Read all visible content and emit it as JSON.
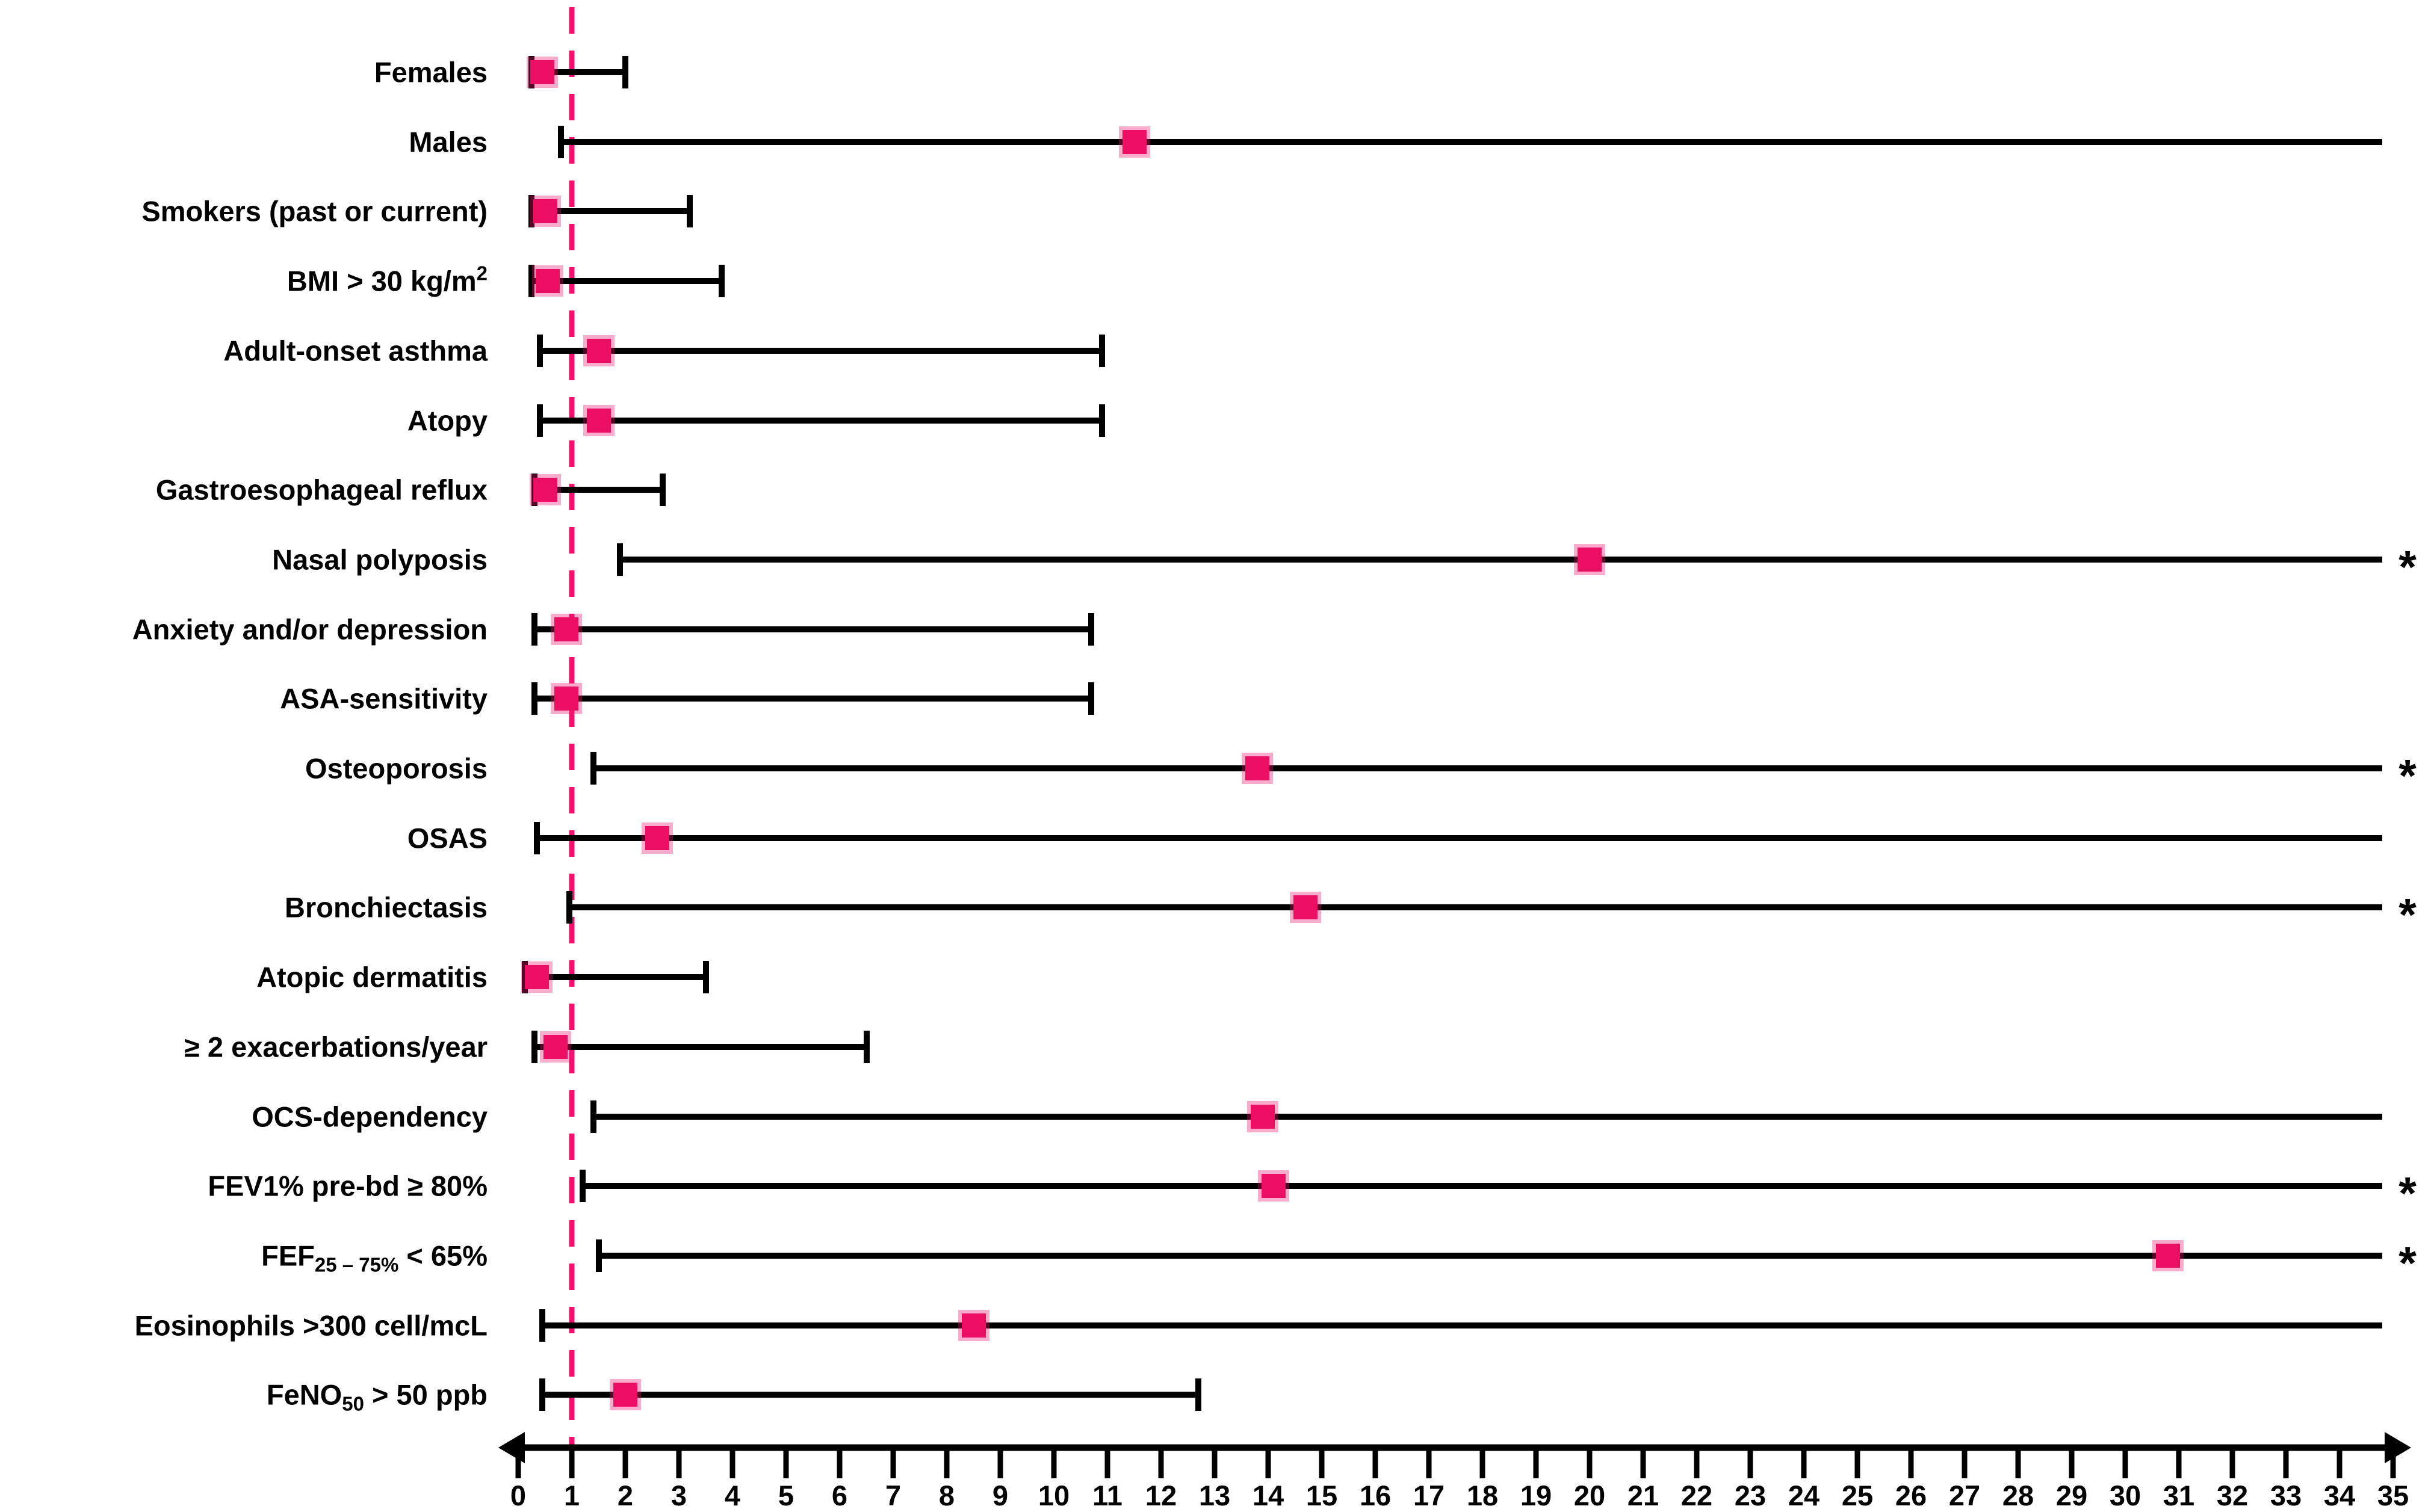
{
  "chart_data": {
    "type": "scatter",
    "subtype": "forest-plot",
    "title": "",
    "xlabel": "",
    "ylabel": "",
    "x_axis": {
      "min": 0,
      "max": 35,
      "tick_labels": [
        "0",
        "1",
        "2",
        "3",
        "4",
        "5",
        "6",
        "7",
        "8",
        "9",
        "10",
        "11",
        "12",
        "13",
        "14",
        "15",
        "16",
        "17",
        "18",
        "19",
        "20",
        "21",
        "22",
        "23",
        "24",
        "25",
        "26",
        "27",
        "28",
        "29",
        "30",
        "31",
        "32",
        "33",
        "34",
        "35"
      ],
      "arrow_both_ends": true
    },
    "reference_line": {
      "x": 1,
      "style": "dashed",
      "color": "#f4106e"
    },
    "marker_color": "#ea0f63",
    "ci_color": "#000000",
    "significance_symbol": "*",
    "rows": [
      {
        "label": [
          {
            "t": "Females"
          }
        ],
        "est": 0.45,
        "lo": 0.25,
        "hi": 2.0,
        "hi_truncated": false,
        "significant": false
      },
      {
        "label": [
          {
            "t": "Males"
          }
        ],
        "est": 11.5,
        "lo": 0.8,
        "hi": 35,
        "hi_truncated": true,
        "significant": false
      },
      {
        "label": [
          {
            "t": "Smokers (past or current)"
          }
        ],
        "est": 0.5,
        "lo": 0.25,
        "hi": 3.2,
        "hi_truncated": false,
        "significant": false
      },
      {
        "label": [
          {
            "t": "BMI > 30 kg/m"
          },
          {
            "t": "2",
            "s": "sup"
          }
        ],
        "est": 0.55,
        "lo": 0.25,
        "hi": 3.8,
        "hi_truncated": false,
        "significant": false
      },
      {
        "label": [
          {
            "t": "Adult-onset asthma"
          }
        ],
        "est": 1.5,
        "lo": 0.4,
        "hi": 10.9,
        "hi_truncated": false,
        "significant": false
      },
      {
        "label": [
          {
            "t": "Atopy"
          }
        ],
        "est": 1.5,
        "lo": 0.4,
        "hi": 10.9,
        "hi_truncated": false,
        "significant": false
      },
      {
        "label": [
          {
            "t": "Gastroesophageal reflux"
          }
        ],
        "est": 0.5,
        "lo": 0.3,
        "hi": 2.7,
        "hi_truncated": false,
        "significant": false
      },
      {
        "label": [
          {
            "t": "Nasal polyposis"
          }
        ],
        "est": 20.0,
        "lo": 1.9,
        "hi": 35,
        "hi_truncated": true,
        "significant": true
      },
      {
        "label": [
          {
            "t": "Anxiety and/or depression"
          }
        ],
        "est": 0.9,
        "lo": 0.3,
        "hi": 10.7,
        "hi_truncated": false,
        "significant": false
      },
      {
        "label": [
          {
            "t": "ASA-sensitivity"
          }
        ],
        "est": 0.9,
        "lo": 0.3,
        "hi": 10.7,
        "hi_truncated": false,
        "significant": false
      },
      {
        "label": [
          {
            "t": "Osteoporosis"
          }
        ],
        "est": 13.8,
        "lo": 1.4,
        "hi": 35,
        "hi_truncated": true,
        "significant": true
      },
      {
        "label": [
          {
            "t": "OSAS"
          }
        ],
        "est": 2.6,
        "lo": 0.35,
        "hi": 35,
        "hi_truncated": true,
        "significant": false
      },
      {
        "label": [
          {
            "t": "Bronchiectasis"
          }
        ],
        "est": 14.7,
        "lo": 0.95,
        "hi": 35,
        "hi_truncated": true,
        "significant": true
      },
      {
        "label": [
          {
            "t": "Atopic dermatitis"
          }
        ],
        "est": 0.35,
        "lo": 0.12,
        "hi": 3.5,
        "hi_truncated": false,
        "significant": false
      },
      {
        "label": [
          {
            "t": "≥ 2 exacerbations/year"
          }
        ],
        "est": 0.7,
        "lo": 0.3,
        "hi": 6.5,
        "hi_truncated": false,
        "significant": false
      },
      {
        "label": [
          {
            "t": "OCS-dependency"
          }
        ],
        "est": 13.9,
        "lo": 1.4,
        "hi": 35,
        "hi_truncated": true,
        "significant": false
      },
      {
        "label": [
          {
            "t": "FEV1% pre-bd ≥ 80%"
          }
        ],
        "est": 14.1,
        "lo": 1.2,
        "hi": 35,
        "hi_truncated": true,
        "significant": true
      },
      {
        "label": [
          {
            "t": "FEF"
          },
          {
            "t": "25 – 75%",
            "s": "sub"
          },
          {
            "t": " < 65%"
          }
        ],
        "est": 30.8,
        "lo": 1.5,
        "hi": 35,
        "hi_truncated": true,
        "significant": true
      },
      {
        "label": [
          {
            "t": "Eosinophils >300 cell/mcL"
          }
        ],
        "est": 8.5,
        "lo": 0.45,
        "hi": 35,
        "hi_truncated": true,
        "significant": false
      },
      {
        "label": [
          {
            "t": "FeNO"
          },
          {
            "t": "50",
            "s": "sub"
          },
          {
            "t": " > 50 ppb"
          }
        ],
        "est": 2.0,
        "lo": 0.45,
        "hi": 12.7,
        "hi_truncated": false,
        "significant": false
      }
    ]
  },
  "layout_note": ""
}
